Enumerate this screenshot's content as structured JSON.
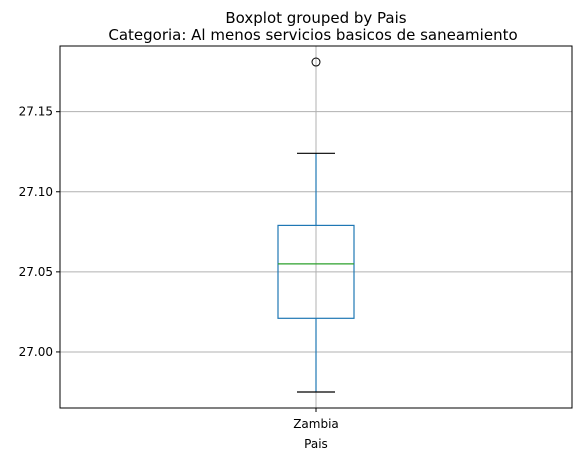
{
  "chart_data": {
    "type": "boxplot",
    "title": "Boxplot grouped by Pais",
    "subtitle": "Categoria: Al menos servicios basicos de saneamiento",
    "xlabel": "Pais",
    "ylabel": "",
    "categories": [
      "Zambia"
    ],
    "boxes": [
      {
        "category": "Zambia",
        "whisker_low": 26.975,
        "q1": 27.021,
        "median": 27.055,
        "q3": 27.079,
        "whisker_high": 27.124,
        "outliers": [
          27.181
        ]
      }
    ],
    "ylim": [
      26.965,
      27.191
    ],
    "yticks": [
      27.0,
      27.05,
      27.1,
      27.15
    ],
    "ytick_labels": [
      "27.00",
      "27.05",
      "27.10",
      "27.15"
    ],
    "grid": true,
    "legend": "none",
    "colors": {
      "box": "#1f77b4",
      "median": "#2ca02c",
      "whisker_cap": "#000000",
      "grid": "#b0b0b0",
      "outlier": "#000000"
    }
  }
}
